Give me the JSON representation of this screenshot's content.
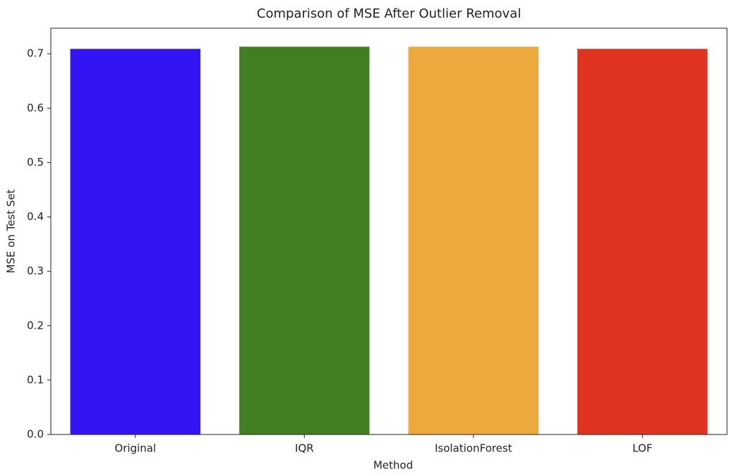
{
  "chart_data": {
    "type": "bar",
    "title": "Comparison of MSE After Outlier Removal",
    "x_label": "Method",
    "y_label": "MSE on Test Set",
    "categories": [
      "Original",
      "IQR",
      "IsolationForest",
      "LOF"
    ],
    "values": [
      0.709,
      0.713,
      0.713,
      0.709
    ],
    "colors": [
      "#3214f5",
      "#407f22",
      "#eba93e",
      "#e03320"
    ],
    "ylim": [
      0,
      0.747
    ],
    "yticks": [
      {
        "value": 0,
        "label": "0.0"
      },
      0.1,
      0.2,
      0.3,
      0.4,
      0.5,
      0.6,
      0.7
    ],
    "grid": false
  }
}
